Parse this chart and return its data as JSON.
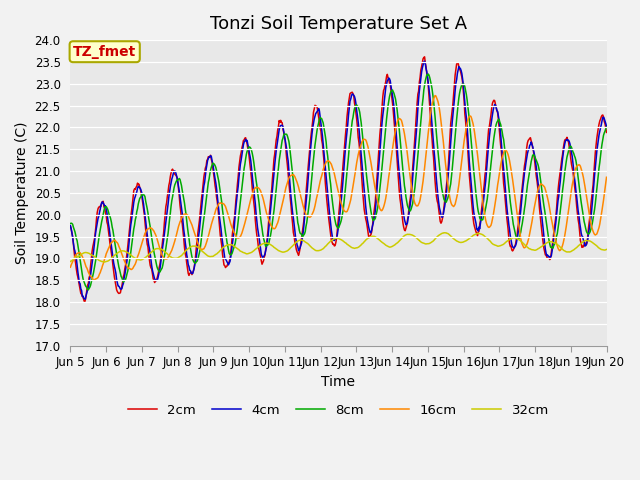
{
  "title": "Tonzi Soil Temperature Set A",
  "xlabel": "Time",
  "ylabel": "Soil Temperature (C)",
  "ylim": [
    17.0,
    24.0
  ],
  "yticks": [
    17.0,
    17.5,
    18.0,
    18.5,
    19.0,
    19.5,
    20.0,
    20.5,
    21.0,
    21.5,
    22.0,
    22.5,
    23.0,
    23.5,
    24.0
  ],
  "xtick_labels": [
    "Jun 5",
    "Jun 6",
    "Jun 7",
    "Jun 8",
    "Jun 9",
    "Jun 10",
    "Jun 11",
    "Jun 12",
    "Jun 13",
    "Jun 14",
    "Jun 15",
    "Jun 16",
    "Jun 17",
    "Jun 18",
    "Jun 19",
    "Jun 20"
  ],
  "series_colors": [
    "#dd0000",
    "#0000cc",
    "#00aa00",
    "#ff8800",
    "#cccc00"
  ],
  "series_labels": [
    "2cm",
    "4cm",
    "8cm",
    "16cm",
    "32cm"
  ],
  "annotation_text": "TZ_fmet",
  "annotation_color": "#cc0000",
  "annotation_bg": "#ffffcc",
  "annotation_border": "#aaa800",
  "fig_bg": "#f2f2f2",
  "plot_bg": "#e8e8e8",
  "title_fontsize": 13,
  "axis_label_fontsize": 10,
  "tick_fontsize": 8.5,
  "legend_fontsize": 9.5
}
